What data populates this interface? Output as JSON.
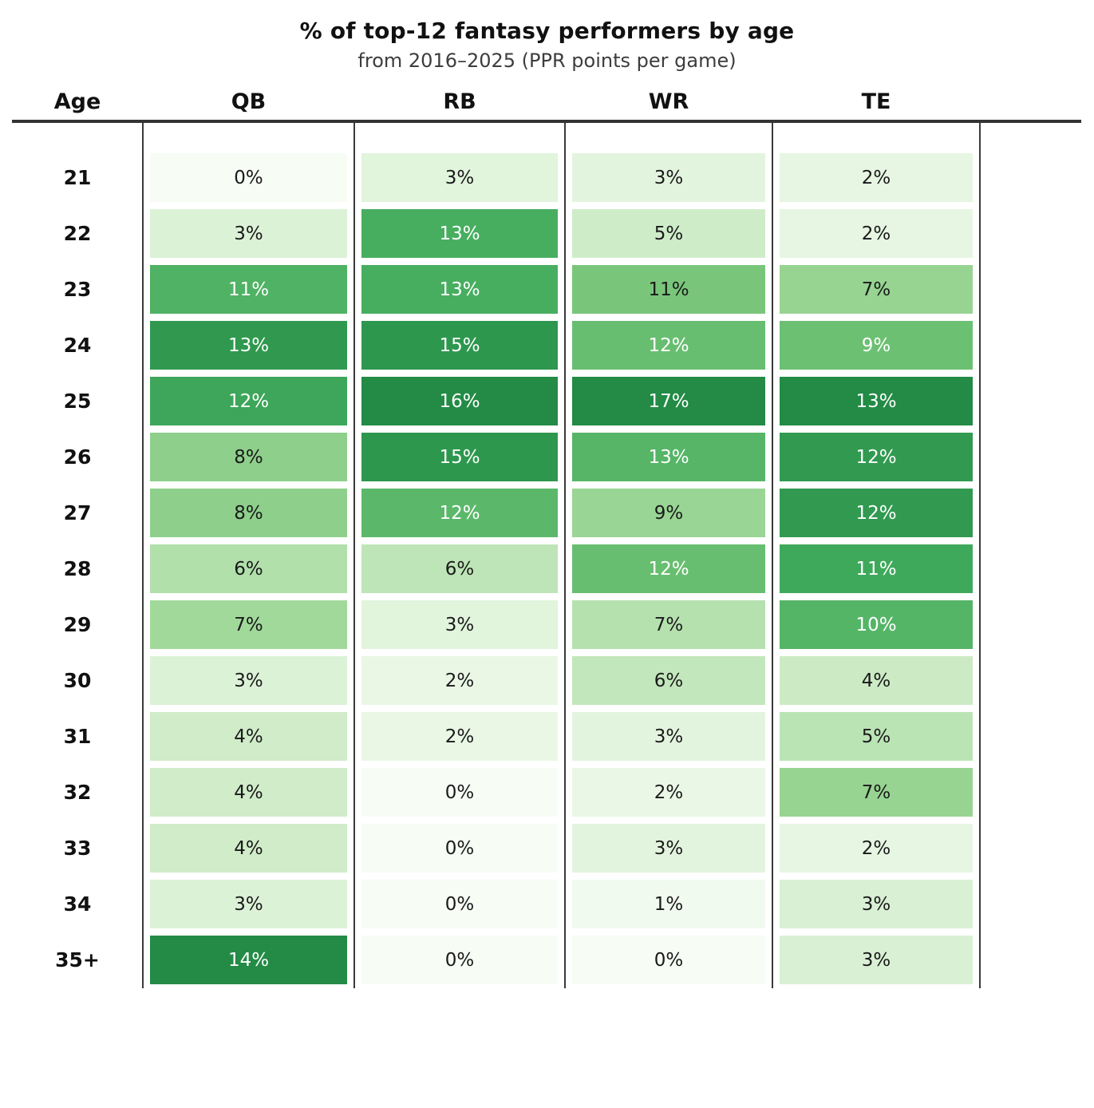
{
  "title": "% of top-12 fantasy performers by age",
  "subtitle": "from 2016–2025 (PPR points per game)",
  "chart_data": {
    "type": "heatmap",
    "row_label_header": "Age",
    "rows": [
      "21",
      "22",
      "23",
      "24",
      "25",
      "26",
      "27",
      "28",
      "29",
      "30",
      "31",
      "32",
      "33",
      "34",
      "35+"
    ],
    "columns": [
      "QB",
      "RB",
      "WR",
      "TE"
    ],
    "series": [
      {
        "name": "QB",
        "values": [
          0,
          3,
          11,
          13,
          12,
          8,
          8,
          6,
          7,
          3,
          4,
          4,
          4,
          3,
          14
        ]
      },
      {
        "name": "RB",
        "values": [
          3,
          13,
          13,
          15,
          16,
          15,
          12,
          6,
          3,
          2,
          2,
          0,
          0,
          0,
          0
        ]
      },
      {
        "name": "WR",
        "values": [
          3,
          5,
          11,
          12,
          17,
          13,
          9,
          12,
          7,
          6,
          3,
          2,
          3,
          1,
          0
        ]
      },
      {
        "name": "TE",
        "values": [
          2,
          2,
          7,
          9,
          13,
          12,
          12,
          11,
          10,
          4,
          5,
          7,
          2,
          3,
          3
        ]
      }
    ],
    "value_suffix": "%",
    "normalization": "per-column-max",
    "column_max": [
      14,
      16,
      17,
      13
    ],
    "colormap_name": "Greens",
    "colormap_anchors": [
      "#f7fcf5",
      "#e5f5e0",
      "#c7e9c0",
      "#a1d99b",
      "#74c476",
      "#41ab5d",
      "#238b45"
    ],
    "white_text_ratio_threshold": 0.67,
    "grid": "column-separators",
    "legend": "none"
  },
  "colors": {
    "background": "#ffffff",
    "title_text": "#111111",
    "subtitle_text": "#3d3d3d",
    "rule_line": "#333333",
    "column_line": "#3a3a3a",
    "cell_text_dark": "#1a1a1a",
    "cell_text_light": "#ffffff",
    "max_green": "#238b45"
  }
}
